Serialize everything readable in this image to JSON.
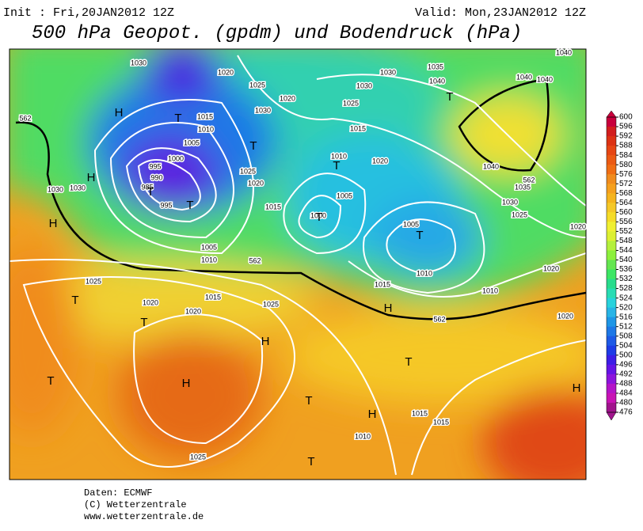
{
  "header": {
    "init": "Init : Fri,20JAN2012 12Z",
    "valid": "Valid: Mon,23JAN2012 12Z",
    "title": "500 hPa Geopot. (gpdm) und Bodendruck (hPa)"
  },
  "footer": {
    "source": "Daten: ECMWF",
    "copyright": "(C) Wetterzentrale",
    "url": "www.wetterzentrale.de"
  },
  "map": {
    "labels": [
      "1030",
      "1020",
      "1025",
      "1030",
      "1035",
      "1040",
      "1040",
      "1040",
      "1040",
      "1030",
      "1025",
      "1020",
      "1030",
      "1015",
      "1010",
      "1005",
      "1000",
      "995",
      "990",
      "985",
      "995",
      "1025",
      "1020",
      "1015",
      "1015",
      "1010",
      "1020",
      "1005",
      "1000",
      "1005",
      "1010",
      "1015",
      "1010",
      "1020",
      "1020",
      "1030",
      "1025",
      "1035",
      "1040",
      "1030",
      "1030",
      "1025",
      "1020",
      "1020",
      "1015",
      "1025",
      "1010",
      "1005",
      "1015",
      "1015",
      "1010",
      "1025",
      "1020",
      "562",
      "562",
      "562",
      "562"
    ],
    "markers": [
      "H",
      "T",
      "T",
      "T",
      "T",
      "T",
      "T",
      "T",
      "H",
      "H",
      "T",
      "T",
      "H",
      "T",
      "H",
      "T",
      "H",
      "T",
      "H",
      "T",
      "H",
      "T"
    ]
  },
  "colorbar": {
    "ticks": [
      600,
      596,
      592,
      588,
      584,
      580,
      576,
      572,
      568,
      564,
      560,
      556,
      552,
      548,
      544,
      540,
      536,
      532,
      528,
      524,
      520,
      516,
      512,
      508,
      504,
      500,
      496,
      492,
      488,
      484,
      480,
      476
    ],
    "colors": [
      "#c8003c",
      "#d21e1e",
      "#dc3214",
      "#e64614",
      "#eb5a14",
      "#f06e14",
      "#f08c1e",
      "#f5a01e",
      "#f5b41e",
      "#f5c828",
      "#f5dc28",
      "#f0f032",
      "#dcf032",
      "#b4f03c",
      "#8cf03c",
      "#64e650",
      "#3ce664",
      "#28dc8c",
      "#28dcb4",
      "#28d2dc",
      "#28b4e6",
      "#1e96e6",
      "#1e78e6",
      "#1e5ae6",
      "#1e3ce6",
      "#3c1ee6",
      "#6414e6",
      "#8c14dc",
      "#b414c8",
      "#c814b4",
      "#a0148c"
    ]
  }
}
